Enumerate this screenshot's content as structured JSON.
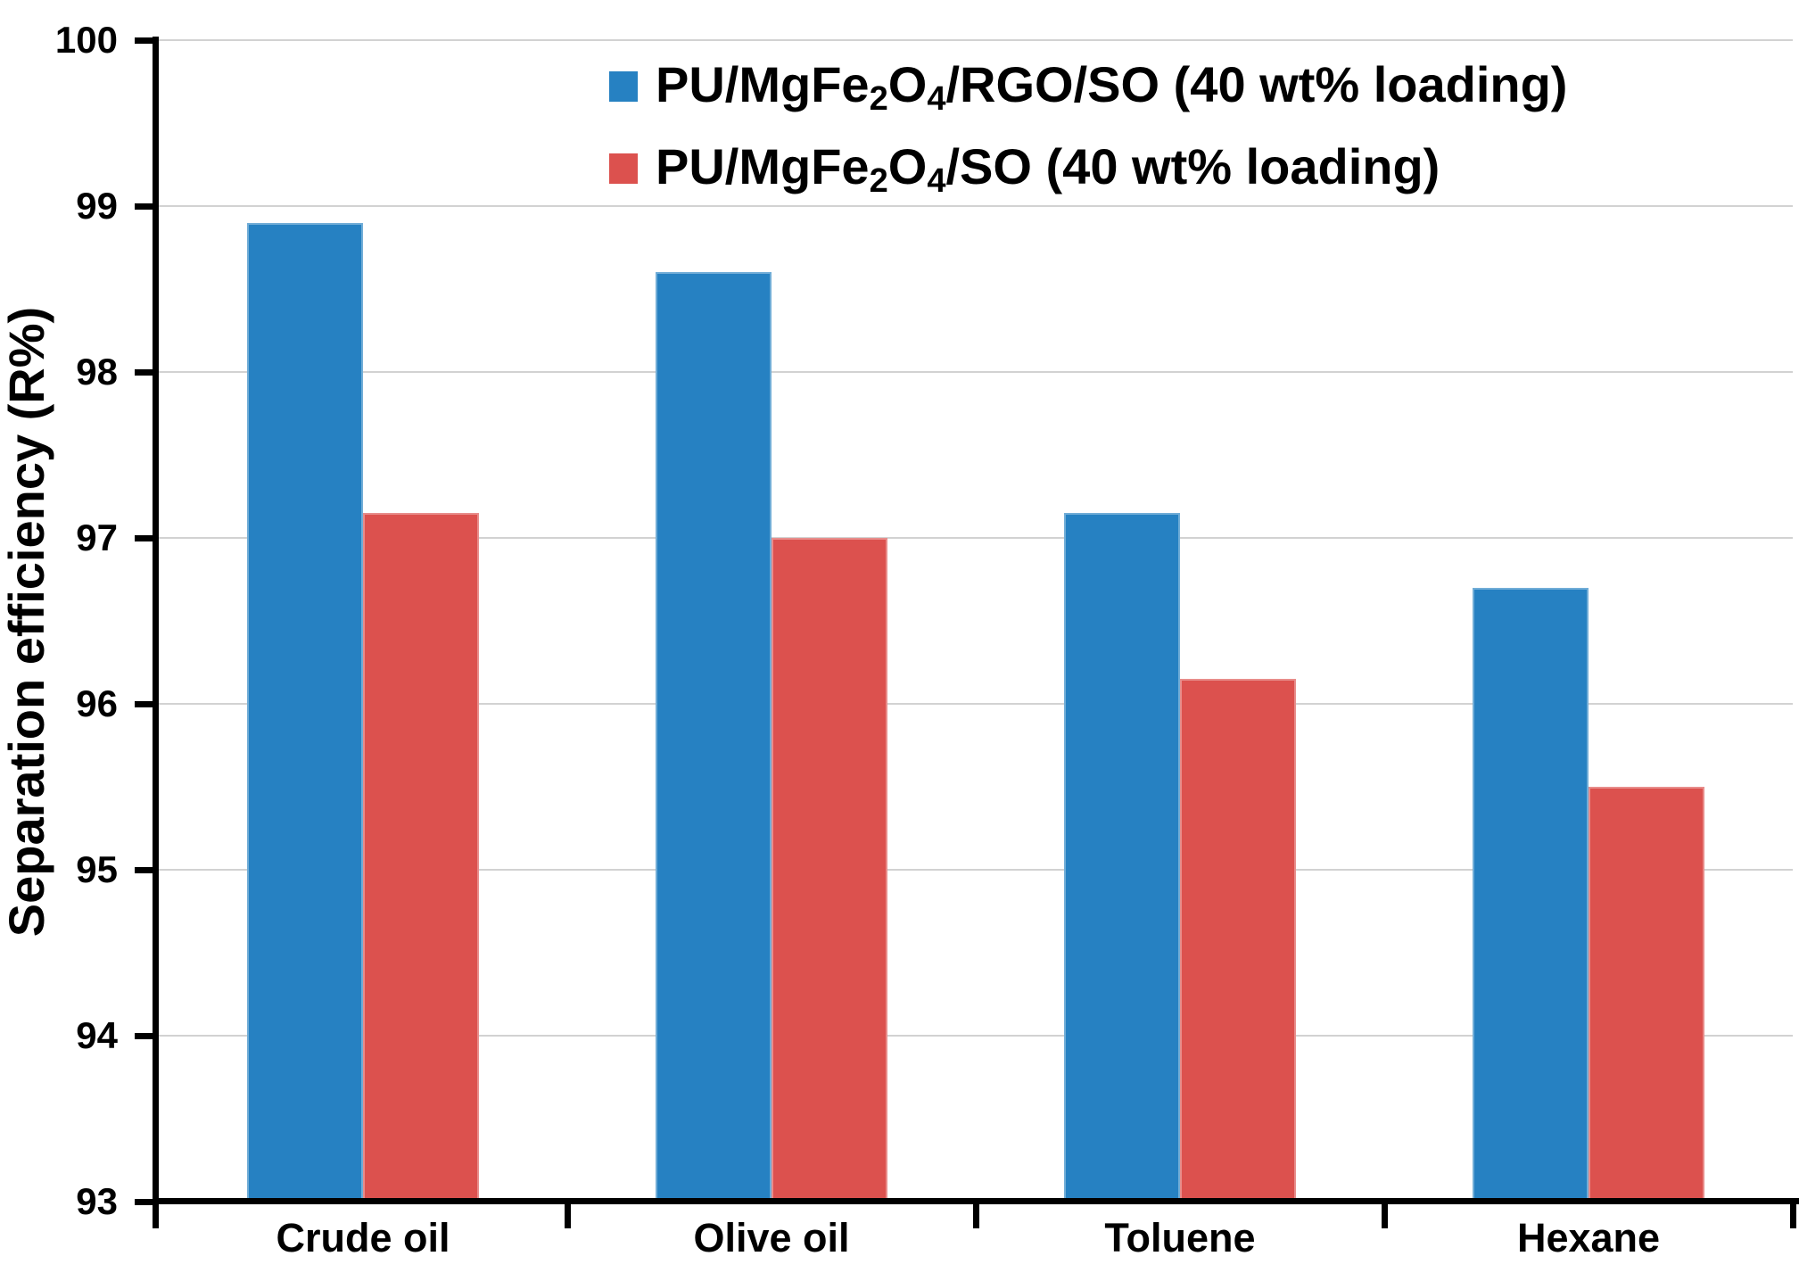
{
  "chart_data": {
    "type": "bar",
    "title": "",
    "xlabel": "",
    "ylabel": "Separation efficiency (R%)",
    "categories": [
      "Crude oil",
      "Olive oil",
      "Toluene",
      "Hexane"
    ],
    "series": [
      {
        "name": "PU/MgFe2O4/RGO/SO (40 wt% loading)",
        "label_parts": [
          {
            "text": "PU/MgFe"
          },
          {
            "sub": "2"
          },
          {
            "text": "O"
          },
          {
            "sub": "4"
          },
          {
            "text": "/RGO/SO (40 wt% loading)"
          }
        ],
        "color": "#2681C2",
        "values": [
          98.9,
          98.6,
          97.15,
          96.7
        ]
      },
      {
        "name": "PU/MgFe2O4/SO (40 wt% loading)",
        "label_parts": [
          {
            "text": "PU/MgFe"
          },
          {
            "sub": "2"
          },
          {
            "text": "O"
          },
          {
            "sub": "4"
          },
          {
            "text": "/SO (40 wt% loading)"
          }
        ],
        "color": "#DC514E",
        "values": [
          97.15,
          97.0,
          96.15,
          95.5
        ]
      }
    ],
    "ylim": [
      93,
      100
    ],
    "ytick_step": 1,
    "yticks": [
      93,
      94,
      95,
      96,
      97,
      98,
      99,
      100
    ],
    "grid": true,
    "legend_position": "top-center",
    "colors": {
      "grid": "#D2D2D2",
      "axis": "#000000",
      "text": "#000000",
      "background": "#FFFFFF",
      "bar_edge_highlight": "rgba(255,255,255,0.35)"
    }
  }
}
